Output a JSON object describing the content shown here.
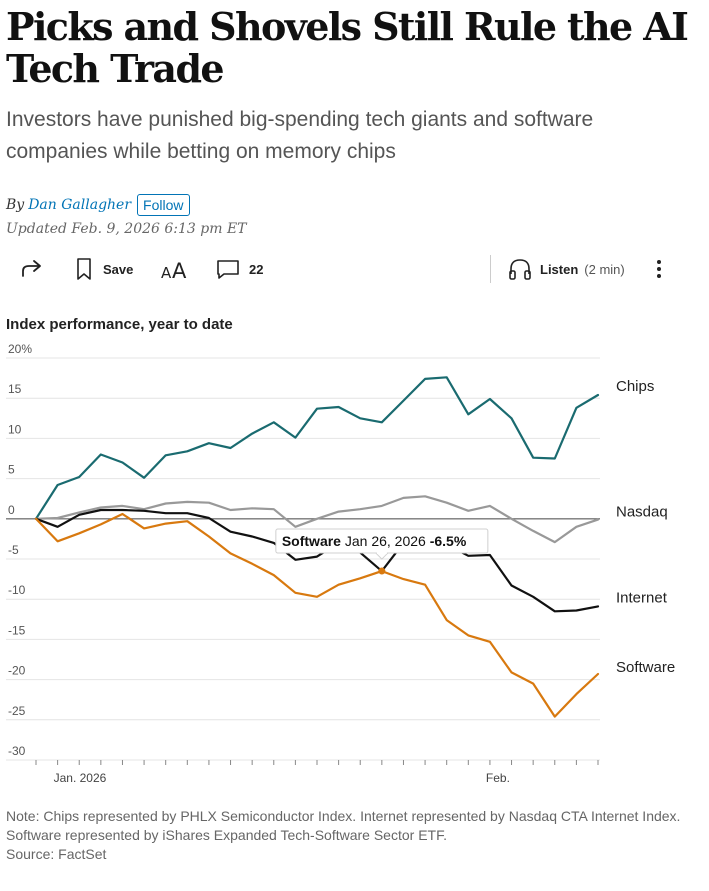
{
  "article": {
    "headline": "Picks and Shovels Still Rule the AI Tech Trade",
    "dek": "Investors have punished big-spending tech giants and software companies while betting on memory chips",
    "byline_prefix": "By",
    "author": "Dan Gallagher",
    "follow_label": "Follow",
    "updated": "Updated Feb. 9, 2026 6:13 pm ET"
  },
  "toolbar": {
    "share_icon": "share-icon",
    "save_label": "Save",
    "text_size_icon": "text-size-icon",
    "comment_count": "22",
    "listen_label": "Listen",
    "listen_duration": "(2 min)"
  },
  "chart_data": {
    "type": "line",
    "title": "Index performance, year to date",
    "y_ticks": [
      "20%",
      "15",
      "10",
      "5",
      "0",
      "-5",
      "-10",
      "-15",
      "-20",
      "-25",
      "-30"
    ],
    "ylim": [
      -30,
      20
    ],
    "x_tick_labels": [
      "Jan. 2026",
      "Feb."
    ],
    "grid": true,
    "legend": "direct labels at right end of lines",
    "x": [
      "2025-12-31",
      "2026-01-02",
      "2026-01-05",
      "2026-01-06",
      "2026-01-07",
      "2026-01-08",
      "2026-01-09",
      "2026-01-12",
      "2026-01-13",
      "2026-01-14",
      "2026-01-15",
      "2026-01-16",
      "2026-01-20",
      "2026-01-21",
      "2026-01-22",
      "2026-01-23",
      "2026-01-26",
      "2026-01-27",
      "2026-01-28",
      "2026-01-29",
      "2026-01-30",
      "2026-02-02",
      "2026-02-03",
      "2026-02-04",
      "2026-02-05",
      "2026-02-06",
      "2026-02-09"
    ],
    "series": [
      {
        "name": "Chips",
        "color": "#1a6b70",
        "values": [
          0,
          4.2,
          5.2,
          8.0,
          7.0,
          5.1,
          7.9,
          8.4,
          9.4,
          8.8,
          10.6,
          12.0,
          10.1,
          13.7,
          13.9,
          12.5,
          12.0,
          14.7,
          17.4,
          17.6,
          13.0,
          14.9,
          12.5,
          7.6,
          7.5,
          13.8,
          15.4
        ]
      },
      {
        "name": "Nasdaq",
        "color": "#999999",
        "values": [
          0,
          0.1,
          0.8,
          1.4,
          1.6,
          1.2,
          1.9,
          2.1,
          2.0,
          1.1,
          1.3,
          1.2,
          -1.0,
          0.0,
          0.9,
          1.2,
          1.6,
          2.6,
          2.8,
          2.0,
          1.0,
          1.6,
          0.0,
          -1.5,
          -2.9,
          -1.0,
          -0.1
        ]
      },
      {
        "name": "Internet",
        "color": "#111111",
        "values": [
          0,
          -1.0,
          0.5,
          1.1,
          1.1,
          1.0,
          0.7,
          0.7,
          0.1,
          -1.6,
          -2.2,
          -3.0,
          -5.1,
          -4.7,
          -3.0,
          -4.2,
          -6.5,
          -3.0,
          -3.0,
          -3.2,
          -4.6,
          -4.5,
          -8.3,
          -9.7,
          -11.5,
          -11.4,
          -10.9
        ]
      },
      {
        "name": "Software",
        "color": "#d8790f",
        "values": [
          0,
          -2.8,
          -1.8,
          -0.7,
          0.6,
          -1.2,
          -0.6,
          -0.3,
          -2.2,
          -4.3,
          -5.6,
          -7.0,
          -9.2,
          -9.7,
          -8.2,
          -7.4,
          -6.5,
          -7.5,
          -8.2,
          -12.6,
          -14.5,
          -15.3,
          -19.1,
          -20.5,
          -24.6,
          -21.8,
          -19.3
        ]
      }
    ],
    "tooltip": {
      "series": "Software",
      "date": "Jan 26, 2026",
      "value": "-6.5%",
      "x_index": 16
    },
    "notes": [
      "Note: Chips represented by PHLX Semiconductor Index. Internet represented by Nasdaq CTA Internet Index.",
      "Software represented by iShares Expanded Tech-Software Sector ETF."
    ],
    "source": "Source: FactSet"
  }
}
